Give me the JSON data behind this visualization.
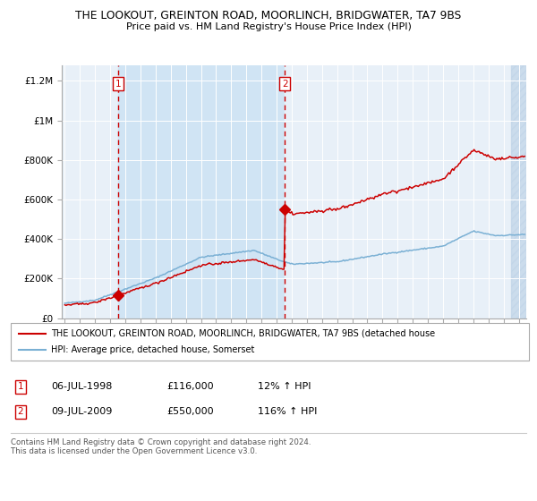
{
  "title_line1": "THE LOOKOUT, GREINTON ROAD, MOORLINCH, BRIDGWATER, TA7 9BS",
  "title_line2": "Price paid vs. HM Land Registry's House Price Index (HPI)",
  "plot_bg": "#e8f0f8",
  "span_bg": "#d0e4f4",
  "red_color": "#cc0000",
  "blue_color": "#7ab0d4",
  "purchase1_date": 1998.54,
  "purchase1_price": 116000,
  "purchase2_date": 2009.54,
  "purchase2_price": 550000,
  "ylabel_ticks": [
    "£0",
    "£200K",
    "£400K",
    "£600K",
    "£800K",
    "£1M",
    "£1.2M"
  ],
  "ylabel_values": [
    0,
    200000,
    400000,
    600000,
    800000,
    1000000,
    1200000
  ],
  "ylim": [
    0,
    1280000
  ],
  "xlim_start": 1994.8,
  "xlim_end": 2025.5,
  "legend_label_red": "THE LOOKOUT, GREINTON ROAD, MOORLINCH, BRIDGWATER, TA7 9BS (detached house",
  "legend_label_blue": "HPI: Average price, detached house, Somerset",
  "annotation1_label": "1",
  "annotation1_date": "06-JUL-1998",
  "annotation1_price": "£116,000",
  "annotation1_hpi": "12% ↑ HPI",
  "annotation2_label": "2",
  "annotation2_date": "09-JUL-2009",
  "annotation2_price": "£550,000",
  "annotation2_hpi": "116% ↑ HPI",
  "footer": "Contains HM Land Registry data © Crown copyright and database right 2024.\nThis data is licensed under the Open Government Licence v3.0."
}
